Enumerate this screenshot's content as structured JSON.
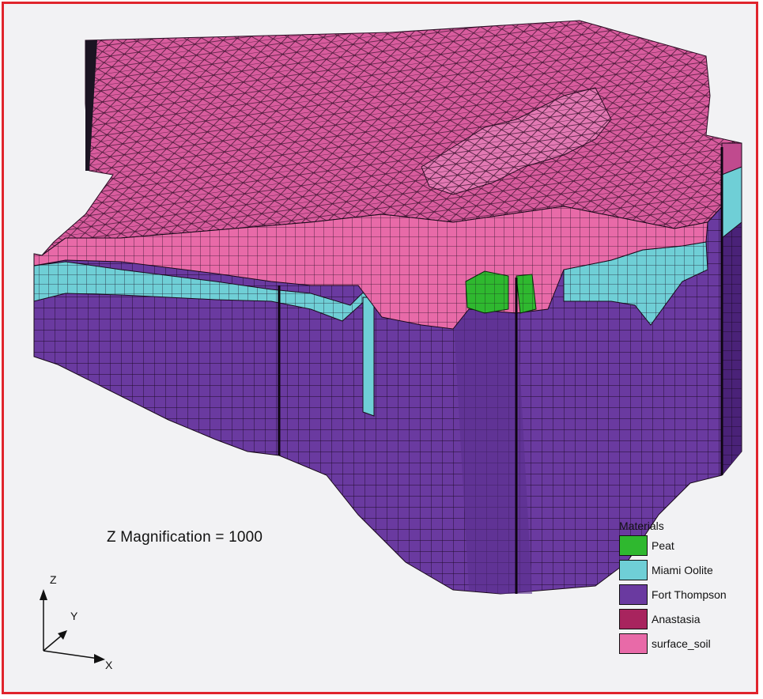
{
  "annotation": {
    "magnification_text": "Z  Magnification = 1000"
  },
  "legend": {
    "title": "Materials",
    "items": [
      {
        "label": "Peat",
        "color": "#2fb82f"
      },
      {
        "label": "Miami Oolite",
        "color": "#6fcfd6"
      },
      {
        "label": "Fort Thompson",
        "color": "#6a3aa0"
      },
      {
        "label": "Anastasia",
        "color": "#a8245e"
      },
      {
        "label": "surface_soil",
        "color": "#e86aa8"
      }
    ]
  },
  "axes": {
    "z": "Z",
    "y": "Y",
    "x": "X"
  },
  "colors": {
    "top_surface": "#d95c9e",
    "mesh_line": "#1a0a1a",
    "fort_thompson": "#6a3aa0",
    "miami_oolite": "#6fcfd6",
    "peat": "#2fb82f",
    "surface_soil": "#e86aa8"
  }
}
